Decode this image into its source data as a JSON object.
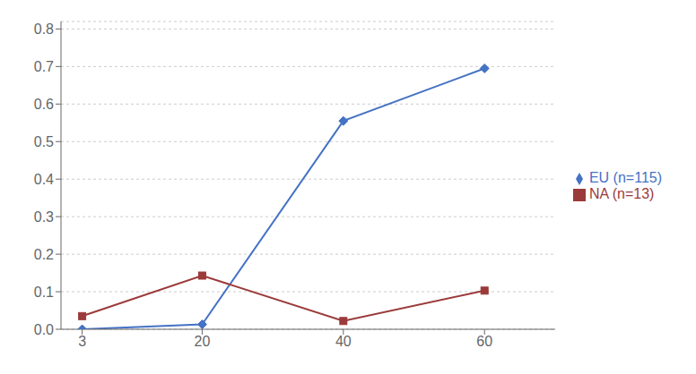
{
  "chart_data": {
    "type": "line",
    "x": [
      3,
      20,
      40,
      60
    ],
    "series": [
      {
        "name": "EU (n=115)",
        "color": "#4472C4",
        "marker": "diamond",
        "values": [
          0.0,
          0.013,
          0.555,
          0.695
        ]
      },
      {
        "name": "NA (n=13)",
        "color": "#9B3A3A",
        "marker": "square",
        "values": [
          0.035,
          0.143,
          0.022,
          0.103
        ]
      }
    ],
    "xlim": [
      0,
      70
    ],
    "xticks": [
      3,
      20,
      40,
      60
    ],
    "ylim": [
      0,
      0.82
    ],
    "yticks": [
      {
        "value": 0,
        "label": "0.0"
      },
      0.1,
      0.2,
      0.3,
      0.4,
      0.5,
      0.6,
      0.7,
      0.8
    ],
    "grid": "y"
  }
}
